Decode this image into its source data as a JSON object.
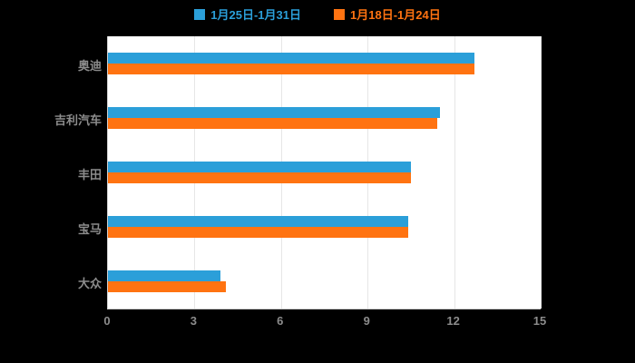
{
  "chart_data": {
    "type": "bar",
    "orientation": "horizontal",
    "title": "",
    "xlabel": "",
    "ylabel": "",
    "categories": [
      "奥迪",
      "吉利汽车",
      "丰田",
      "宝马",
      "大众"
    ],
    "series": [
      {
        "name": "1月25日-1月31日",
        "color": "#2B9FD9",
        "values": [
          12.7,
          11.5,
          10.5,
          10.4,
          3.9
        ]
      },
      {
        "name": "1月18日-1月24日",
        "color": "#FF7311",
        "values": [
          12.7,
          11.4,
          10.5,
          10.4,
          4.1
        ]
      }
    ],
    "xlim": [
      0,
      15
    ],
    "xticks": [
      0,
      3,
      6,
      9,
      12,
      15
    ],
    "legend_position": "top",
    "grid": true,
    "colors": {
      "plot_background": "#ffffff",
      "page_background": "#000000",
      "axis_label": "#8c8c8c",
      "gridline": "#e6e6e6"
    }
  }
}
